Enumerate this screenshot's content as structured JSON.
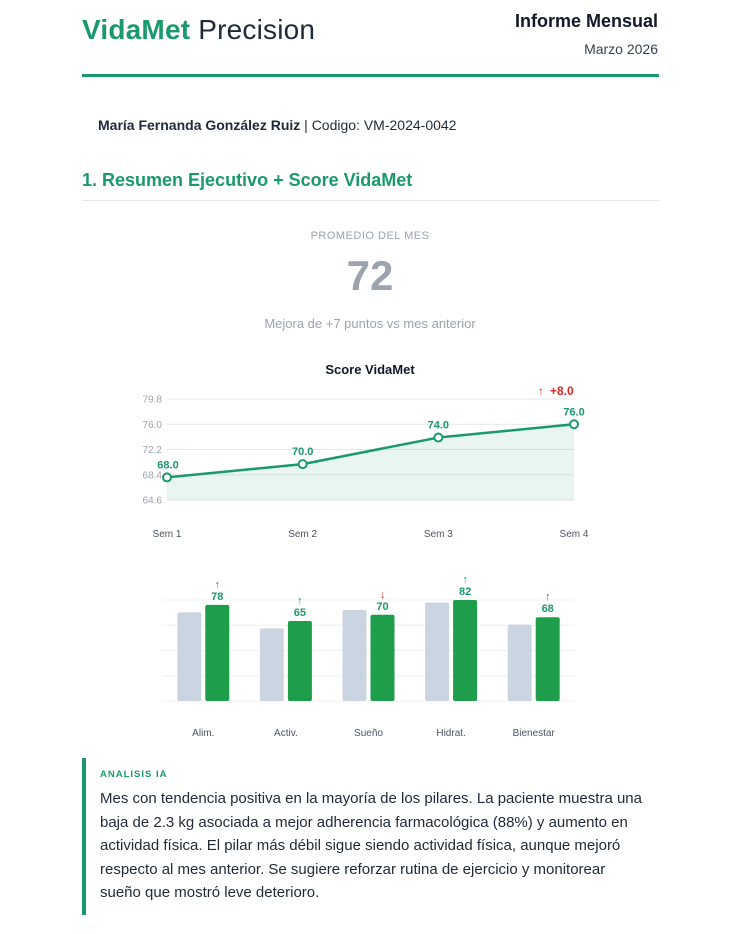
{
  "header": {
    "brand_primary": "VidaMet",
    "brand_secondary": "Precision",
    "report_title": "Informe Mensual",
    "report_date": "Marzo 2026"
  },
  "patient": {
    "name": "María Fernanda González Ruiz",
    "separator": "|",
    "code_label": "Codigo:",
    "code": "VM-2024-0042"
  },
  "section": {
    "title": "1. Resumen Ejecutivo + Score VidaMet"
  },
  "summary": {
    "label": "PROMEDIO DEL MES",
    "value": "72",
    "note": "Mejora de +7 puntos vs mes anterior"
  },
  "colors": {
    "accent": "#1a9a6c",
    "bar_current": "#1e9e4a",
    "bar_previous": "#cbd5e1",
    "up": "#1a9a6c",
    "down": "#dc2626"
  },
  "chart_data": [
    {
      "type": "line",
      "title": "Score VidaMet",
      "categories": [
        "Sem 1",
        "Sem 2",
        "Sem 3",
        "Sem 4"
      ],
      "values": [
        68.0,
        70.0,
        74.0,
        76.0
      ],
      "y_ticks": [
        "79.8",
        "76.0",
        "72.2",
        "68.4",
        "64.6"
      ],
      "ylim": [
        64.6,
        79.8
      ],
      "annotation": {
        "arrow": "↑",
        "text": "+8.0",
        "color": "#dc2626"
      },
      "grid": true,
      "fill": true
    },
    {
      "type": "bar",
      "categories": [
        "Alim.",
        "Activ.",
        "Sueño",
        "Hidrat.",
        "Bienestar"
      ],
      "series": [
        {
          "values": [
            72,
            59,
            74,
            80,
            62
          ]
        },
        {
          "values": [
            78,
            65,
            70,
            82,
            68
          ]
        }
      ],
      "trend": [
        "↑",
        "↑",
        "↓",
        "↑",
        "↑"
      ],
      "ylim": [
        0,
        82
      ],
      "grid": true
    }
  ],
  "analysis": {
    "label": "ANALISIS IA",
    "text": "Mes con tendencia positiva en la mayoría de los pilares. La paciente muestra una baja de 2.3 kg asociada a mejor adherencia farmacológica (88%) y aumento en actividad física. El pilar más débil sigue siendo actividad física, aunque mejoró respecto al mes anterior. Se sugiere reforzar rutina de ejercicio y monitorear sueño que mostró leve deterioro."
  }
}
